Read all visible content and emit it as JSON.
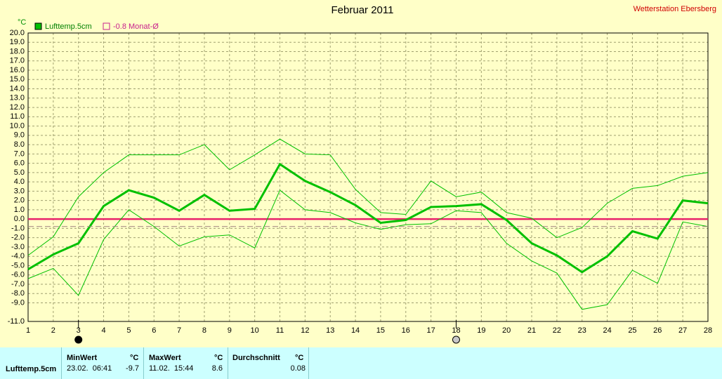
{
  "chart_data": {
    "type": "line",
    "title": "Februar 2011",
    "station": "Wetterstation Ebersberg",
    "y_unit": "°C",
    "x": [
      1,
      2,
      3,
      4,
      5,
      6,
      7,
      8,
      9,
      10,
      11,
      12,
      13,
      14,
      15,
      16,
      17,
      18,
      19,
      20,
      21,
      22,
      23,
      24,
      25,
      26,
      27,
      28
    ],
    "xlim": [
      1,
      28
    ],
    "xticks": [
      1,
      2,
      3,
      4,
      5,
      6,
      7,
      8,
      9,
      10,
      11,
      12,
      13,
      14,
      15,
      16,
      17,
      18,
      19,
      20,
      21,
      22,
      23,
      24,
      25,
      26,
      27,
      28
    ],
    "ylim": [
      -11,
      20
    ],
    "yticks": [
      {
        "value": 20,
        "label": "20.0"
      },
      {
        "value": 19,
        "label": "19.0"
      },
      {
        "value": 18,
        "label": "18.0"
      },
      {
        "value": 17,
        "label": "17.0"
      },
      {
        "value": 16,
        "label": "16.0"
      },
      {
        "value": 15,
        "label": "15.0"
      },
      {
        "value": 14,
        "label": "14.0"
      },
      {
        "value": 13,
        "label": "13.0"
      },
      {
        "value": 12,
        "label": "12.0"
      },
      {
        "value": 11,
        "label": "11.0"
      },
      {
        "value": 10,
        "label": "10.0"
      },
      {
        "value": 9,
        "label": "9.0"
      },
      {
        "value": 8,
        "label": "8.0"
      },
      {
        "value": 7,
        "label": "7.0"
      },
      {
        "value": 6,
        "label": "6.0"
      },
      {
        "value": 5,
        "label": "5.0"
      },
      {
        "value": 4,
        "label": "4.0"
      },
      {
        "value": 3,
        "label": "3.0"
      },
      {
        "value": 2,
        "label": "2.0"
      },
      {
        "value": 1,
        "label": "1.0"
      },
      {
        "value": 0,
        "label": "0.0"
      },
      {
        "value": -1,
        "label": "-1.0"
      },
      {
        "value": -2,
        "label": "-2.0"
      },
      {
        "value": -3,
        "label": "-3.0"
      },
      {
        "value": -4,
        "label": "-4.0"
      },
      {
        "value": -5,
        "label": "-5.0"
      },
      {
        "value": -6,
        "label": "-6.0"
      },
      {
        "value": -7,
        "label": "-7.0"
      },
      {
        "value": -8,
        "label": "-8.0"
      },
      {
        "value": -9,
        "label": "-9.0"
      },
      {
        "value": -11,
        "label": "-11.0"
      }
    ],
    "grid": true,
    "series": [
      {
        "name": "Lufttemp.5cm",
        "color": "#00c000",
        "values": [
          -5.4,
          -3.8,
          -2.6,
          1.4,
          3.1,
          2.3,
          0.9,
          2.6,
          0.9,
          1.1,
          5.9,
          4.1,
          2.9,
          1.5,
          -0.4,
          -0.1,
          1.3,
          1.4,
          1.6,
          -0.1,
          -2.6,
          -3.9,
          -5.7,
          -4.0,
          -1.3,
          -2.1,
          2.0,
          1.7
        ],
        "max_values": [
          -3.9,
          -1.9,
          2.4,
          5.0,
          6.9,
          6.9,
          6.9,
          8.0,
          5.3,
          6.9,
          8.6,
          7.0,
          6.9,
          3.2,
          0.7,
          0.5,
          4.1,
          2.4,
          2.9,
          0.7,
          0.1,
          -2.0,
          -0.9,
          1.7,
          3.3,
          3.6,
          4.6,
          5.0
        ],
        "min_values": [
          -6.4,
          -5.3,
          -8.2,
          -2.2,
          1.0,
          -0.8,
          -2.9,
          -1.9,
          -1.7,
          -3.1,
          3.1,
          1.0,
          0.7,
          -0.4,
          -1.1,
          -0.6,
          -0.5,
          0.9,
          0.7,
          -2.6,
          -4.5,
          -5.8,
          -9.7,
          -9.2,
          -5.5,
          -6.9,
          -0.3,
          -0.8
        ]
      },
      {
        "name": "-0.8 Monat-Ø",
        "color": "#c8208c",
        "value": -0.8
      }
    ],
    "zero_line": {
      "value": 0,
      "color": "#e8206a"
    },
    "moon_phases": [
      {
        "day": 3,
        "phase": "new"
      },
      {
        "day": 18,
        "phase": "full"
      }
    ]
  },
  "table": {
    "headers": [
      "MinWert",
      "°C",
      "MaxWert",
      "°C",
      "Durchschnitt",
      "°C"
    ],
    "rows": [
      [
        "Lufttemp.5cm",
        "23.02.  06:41",
        "-9.7",
        "11.02.  15:44",
        "8.6",
        "0.08"
      ]
    ]
  }
}
